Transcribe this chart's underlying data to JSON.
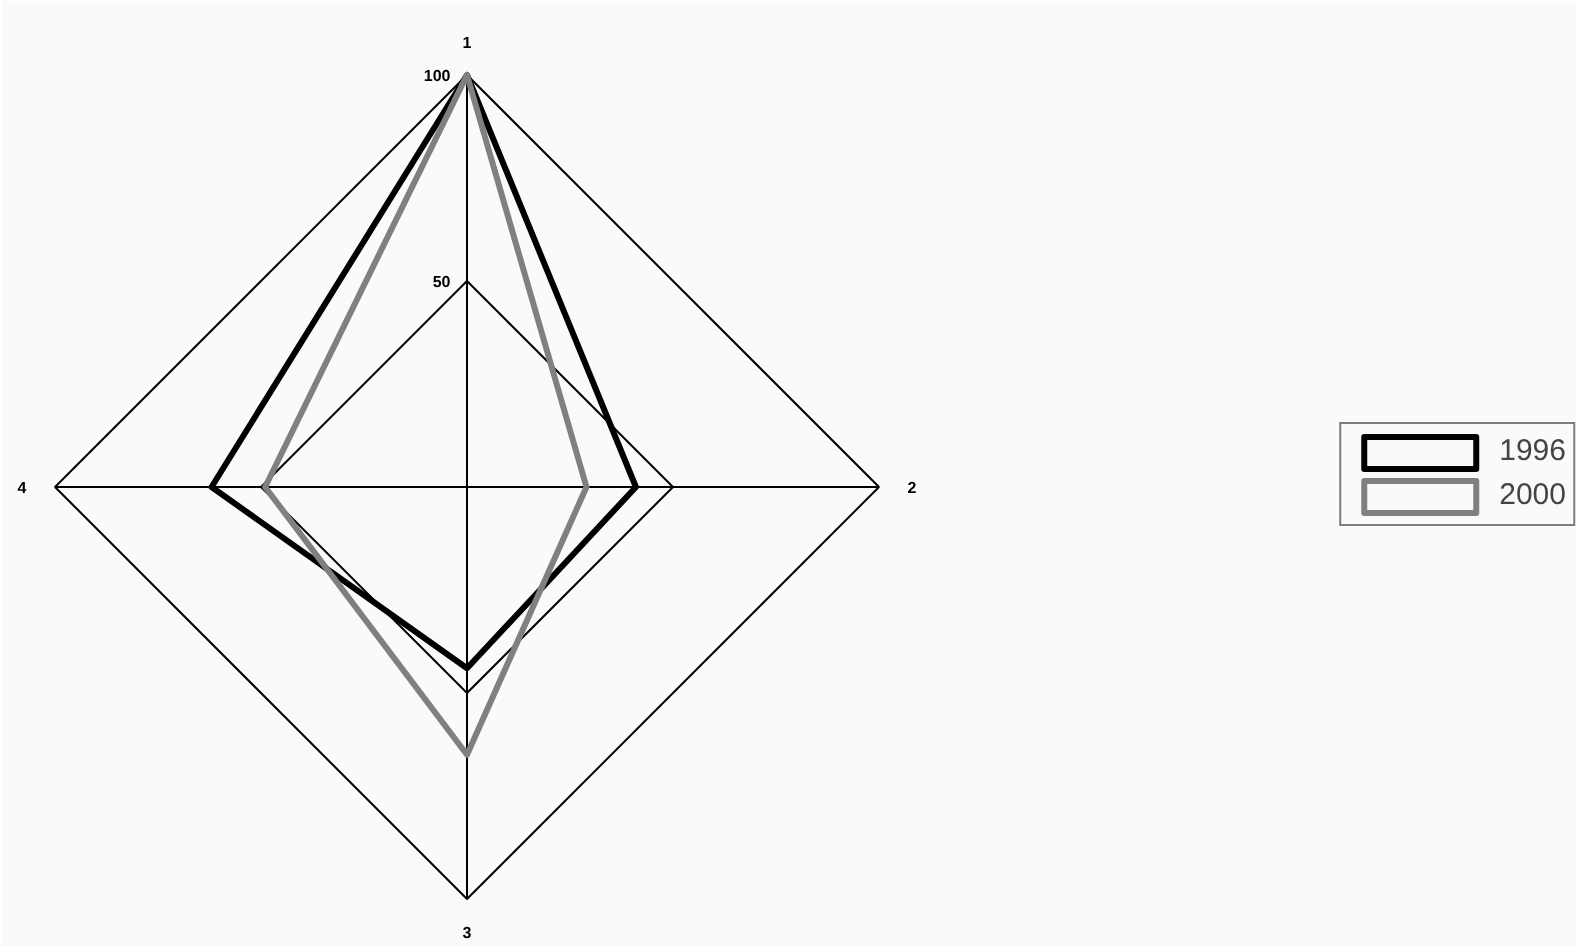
{
  "chart_data": {
    "type": "radar",
    "categories": [
      "1",
      "2",
      "3",
      "4"
    ],
    "series": [
      {
        "name": "1996",
        "color": "#000000",
        "values": [
          100,
          41,
          44,
          62
        ]
      },
      {
        "name": "2000",
        "color": "#808080",
        "values": [
          100,
          29,
          65,
          49
        ]
      }
    ],
    "ylim": [
      0,
      100
    ],
    "yticks": [
      50,
      100
    ],
    "grid": true,
    "legend": "right",
    "line_style": "solid",
    "marker": "none"
  }
}
